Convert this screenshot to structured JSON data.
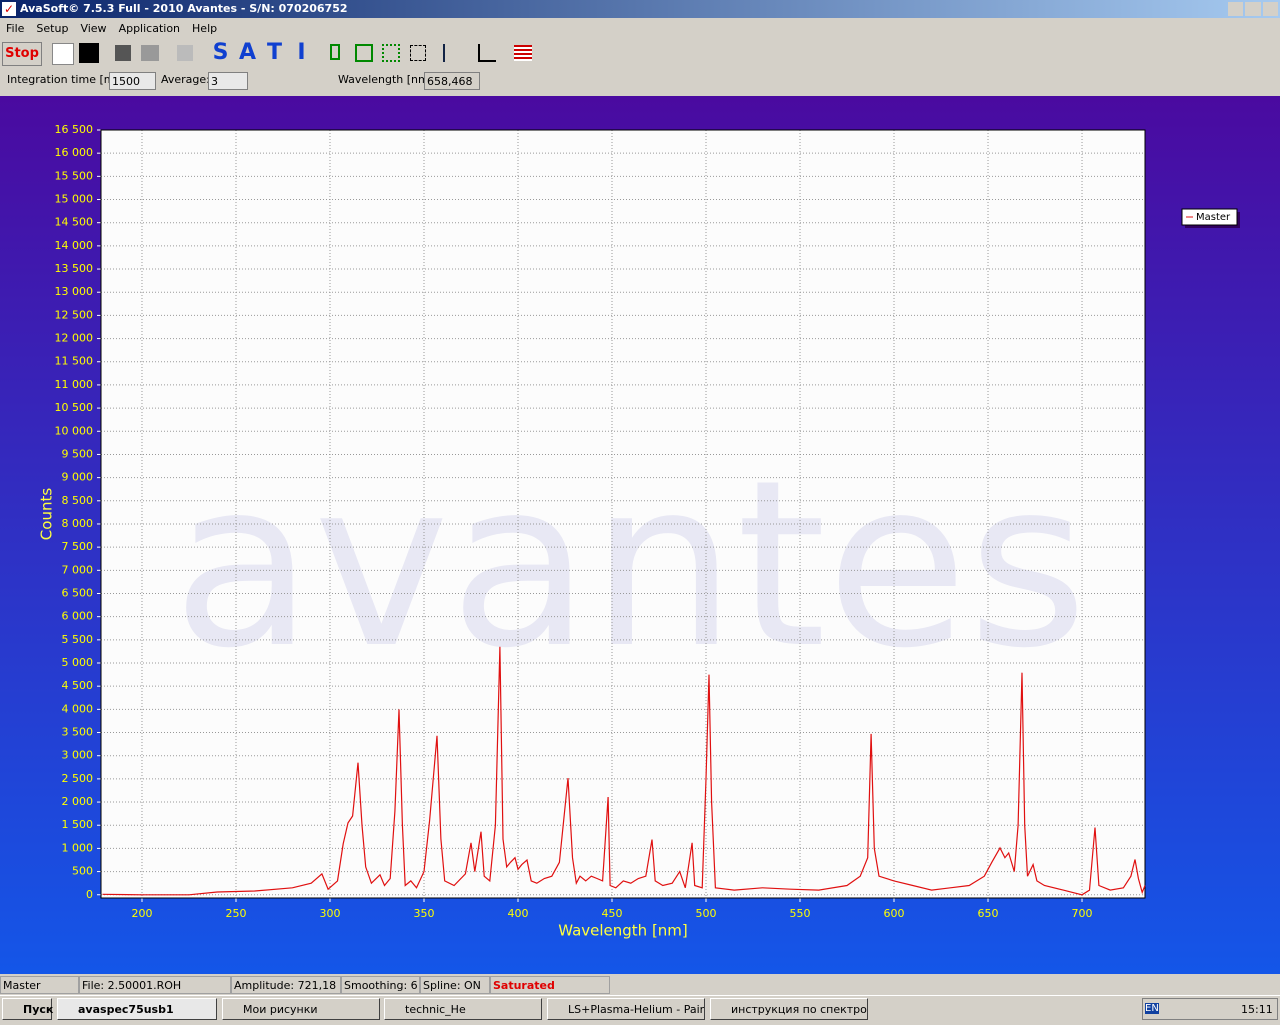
{
  "window": {
    "title": "AvaSoft© 7.5.3 Full - 2010 Avantes - S/N: 070206752"
  },
  "menu": [
    "File",
    "Setup",
    "View",
    "Application",
    "Help"
  ],
  "toolbar": {
    "stop": "Stop",
    "modes": [
      "S",
      "A",
      "T",
      "I"
    ]
  },
  "params": {
    "integration_label": "Integration time [ms]:",
    "integration_value": "1500",
    "average_label": "Average:",
    "average_value": "3",
    "wavelength_label": "Wavelength [nm]:",
    "wavelength_value": "658,468"
  },
  "watermark": "avantes",
  "chart_data": {
    "type": "line",
    "xlabel": "Wavelength [nm]",
    "ylabel": "Counts",
    "xlim": [
      178.2,
      733.5
    ],
    "ylim": [
      -70,
      16500
    ],
    "xticks": [
      200,
      250,
      300,
      350,
      400,
      450,
      500,
      550,
      600,
      650,
      700
    ],
    "yticks": [
      0,
      500,
      {
        "value": 1000,
        "label": "1 000"
      },
      {
        "value": 1500,
        "label": "1 500"
      },
      {
        "value": 2000,
        "label": "2 000"
      },
      {
        "value": 2500,
        "label": "2 500"
      },
      {
        "value": 3000,
        "label": "3 000"
      },
      {
        "value": 3500,
        "label": "3 500"
      },
      {
        "value": 4000,
        "label": "4 000"
      },
      {
        "value": 4500,
        "label": "4 500"
      },
      {
        "value": 5000,
        "label": "5 000"
      },
      {
        "value": 5500,
        "label": "5 500"
      },
      {
        "value": 6000,
        "label": "6 000"
      },
      {
        "value": 6500,
        "label": "6 500"
      },
      {
        "value": 7000,
        "label": "7 000"
      },
      {
        "value": 7500,
        "label": "7 500"
      },
      {
        "value": 8000,
        "label": "8 000"
      },
      {
        "value": 8500,
        "label": "8 500"
      },
      {
        "value": 9000,
        "label": "9 000"
      },
      {
        "value": 9500,
        "label": "9 500"
      },
      {
        "value": 10000,
        "label": "10 000"
      },
      {
        "value": 10500,
        "label": "10 500"
      },
      {
        "value": 11000,
        "label": "11 000"
      },
      {
        "value": 11500,
        "label": "11 500"
      },
      {
        "value": 12000,
        "label": "12 000"
      },
      {
        "value": 12500,
        "label": "12 500"
      },
      {
        "value": 13000,
        "label": "13 000"
      },
      {
        "value": 13500,
        "label": "13 500"
      },
      {
        "value": 14000,
        "label": "14 000"
      },
      {
        "value": 14500,
        "label": "14 500"
      },
      {
        "value": 15000,
        "label": "15 000"
      },
      {
        "value": 15500,
        "label": "15 500"
      },
      {
        "value": 16000,
        "label": "16 000"
      },
      {
        "value": 16500,
        "label": "16 500"
      }
    ],
    "grid": true,
    "legend": "right",
    "x": [
      179,
      200,
      225,
      240,
      260,
      280,
      290,
      295.7,
      299,
      304,
      307,
      309.6,
      312,
      314.9,
      317,
      319,
      322,
      326.6,
      329,
      332,
      334.5,
      336.7,
      338.5,
      340,
      343,
      346,
      350,
      353,
      356.9,
      359,
      361,
      366,
      372,
      375,
      377,
      380.3,
      382,
      385,
      388,
      390.4,
      392,
      394,
      396,
      398.4,
      400,
      402,
      404.8,
      407,
      410,
      414,
      418,
      422,
      426.6,
      429,
      431,
      433,
      436,
      439,
      442,
      445,
      447.9,
      449,
      452,
      456,
      460,
      464,
      468,
      471.3,
      473,
      477,
      482,
      486,
      489,
      492.6,
      494,
      498,
      500,
      501.6,
      503,
      505,
      515,
      530,
      545,
      560,
      575,
      582,
      586,
      587.8,
      589.5,
      592,
      600,
      610,
      620,
      630,
      640,
      648,
      652,
      656.4,
      659,
      661,
      664,
      666,
      668.1,
      669.5,
      671,
      674,
      676,
      680,
      690,
      700,
      704,
      706.9,
      709,
      715,
      722,
      726,
      728.2,
      730,
      732,
      733.5
    ],
    "series": [
      {
        "name": "Master",
        "color": "#e01010",
        "values": [
          10,
          0,
          0,
          60,
          80,
          150,
          250,
          450,
          120,
          300,
          1100,
          1550,
          1700,
          2850,
          1500,
          600,
          250,
          430,
          200,
          350,
          1800,
          4000,
          1500,
          200,
          300,
          150,
          500,
          1600,
          3430,
          1200,
          300,
          200,
          450,
          1120,
          500,
          1360,
          400,
          300,
          1500,
          5350,
          1200,
          600,
          700,
          800,
          550,
          650,
          750,
          300,
          250,
          350,
          400,
          700,
          2520,
          800,
          250,
          400,
          300,
          400,
          350,
          300,
          2110,
          200,
          150,
          300,
          250,
          350,
          400,
          1190,
          300,
          200,
          250,
          500,
          150,
          1120,
          200,
          150,
          2500,
          4750,
          2000,
          150,
          100,
          150,
          120,
          100,
          200,
          400,
          800,
          3470,
          1000,
          400,
          300,
          200,
          100,
          150,
          200,
          400,
          700,
          1010,
          800,
          900,
          500,
          1500,
          4790,
          1500,
          400,
          650,
          300,
          200,
          100,
          0,
          100,
          1450,
          200,
          100,
          150,
          400,
          760,
          350,
          50,
          200
        ]
      }
    ]
  },
  "status": [
    "Master",
    "File: 2.50001.ROH",
    "Amplitude: 721,18",
    "Smoothing: 6",
    "Spline: ON",
    "Saturated"
  ],
  "taskbar": {
    "start": "Пуск",
    "items": [
      "avaspec75usb1",
      "Мои рисунки",
      "technic_He",
      "LS+Plasma-Helium - Paint",
      "инструкция по спектро..."
    ],
    "lang": "EN",
    "clock": "15:11"
  }
}
